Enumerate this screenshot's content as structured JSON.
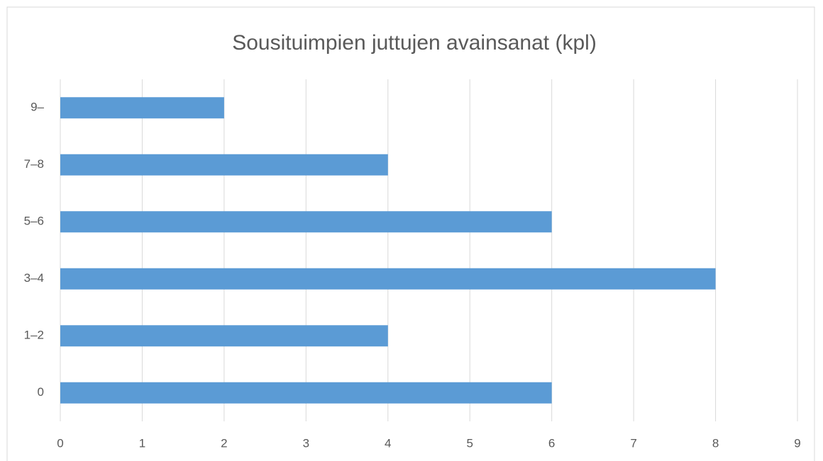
{
  "chart_data": {
    "type": "bar",
    "orientation": "horizontal",
    "title": "Sousituimpien juttujen avainsanat (kpl)",
    "categories": [
      "0",
      "1–2",
      "3–4",
      "5–6",
      "7–8",
      "9–"
    ],
    "values": [
      6,
      4,
      8,
      6,
      4,
      2
    ],
    "color": "#5b9bd5",
    "xlim": [
      0,
      9
    ],
    "xticks": [
      0,
      1,
      2,
      3,
      4,
      5,
      6,
      7,
      8,
      9
    ],
    "grid": true
  }
}
